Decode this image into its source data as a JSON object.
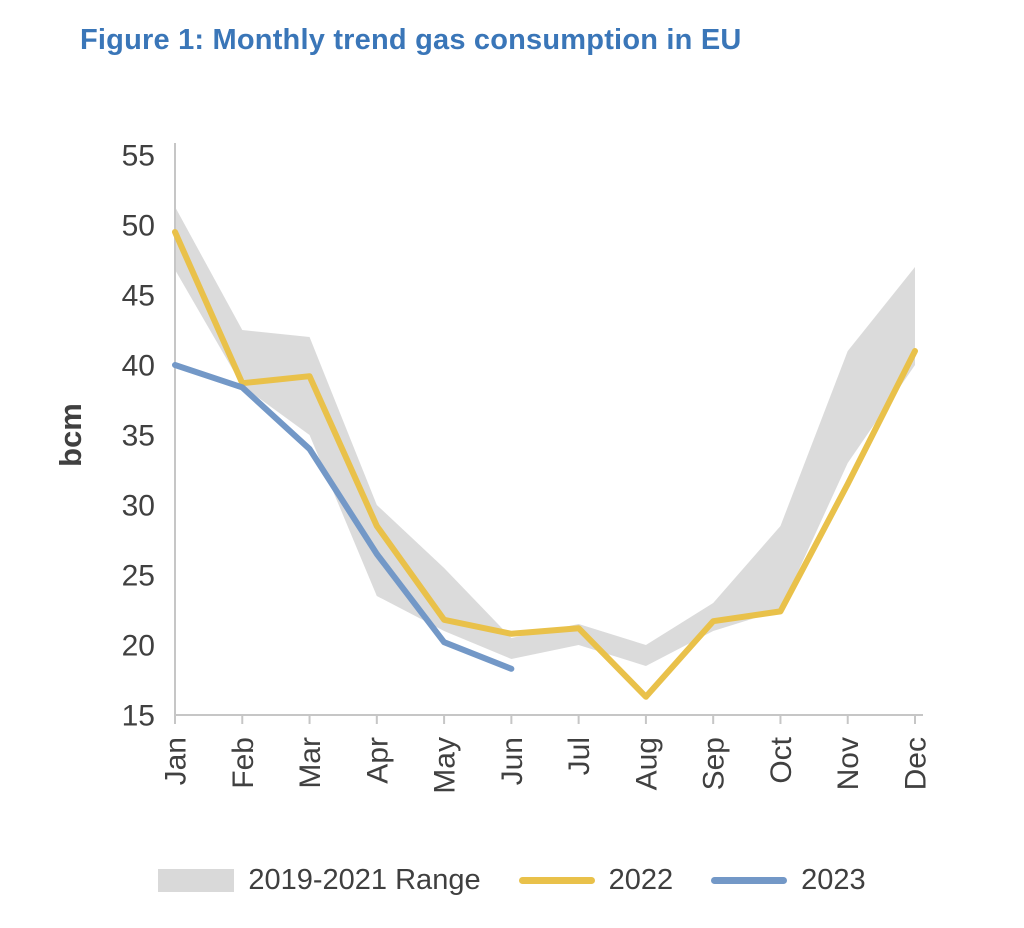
{
  "title": "Figure 1: Monthly trend gas consumption in EU",
  "colors": {
    "title": "#3a76b8",
    "axis_text": "#404040",
    "axis_line": "#c6c6c6"
  },
  "chart_data": {
    "type": "line",
    "title": "Figure 1: Monthly trend gas consumption in EU",
    "xlabel": "",
    "ylabel": "bcm",
    "ylim": [
      15,
      55
    ],
    "yticks": [
      15,
      20,
      25,
      30,
      35,
      40,
      45,
      50,
      55
    ],
    "grid": false,
    "legend_position": "bottom",
    "categories": [
      "Jan",
      "Feb",
      "Mar",
      "Apr",
      "May",
      "Jun",
      "Jul",
      "Aug",
      "Sep",
      "Oct",
      "Nov",
      "Dec"
    ],
    "band": {
      "name": "2019-2021 Range",
      "color": "#d9d9d9",
      "upper": [
        51.3,
        42.5,
        42.0,
        30.0,
        25.5,
        20.5,
        21.5,
        20.0,
        23.0,
        28.5,
        41.0,
        47.0
      ],
      "lower": [
        46.8,
        38.5,
        35.0,
        23.5,
        21.0,
        19.0,
        20.0,
        18.5,
        21.0,
        22.5,
        33.0,
        40.0
      ]
    },
    "series": [
      {
        "name": "2022",
        "color": "#e9c14a",
        "values": [
          49.5,
          38.7,
          39.2,
          28.5,
          21.8,
          20.8,
          21.2,
          16.3,
          21.7,
          22.4,
          31.5,
          41.0
        ]
      },
      {
        "name": "2023",
        "color": "#7398c7",
        "values": [
          40.0,
          38.4,
          34.0,
          26.5,
          20.2,
          18.3,
          null,
          null,
          null,
          null,
          null,
          null
        ]
      }
    ]
  }
}
